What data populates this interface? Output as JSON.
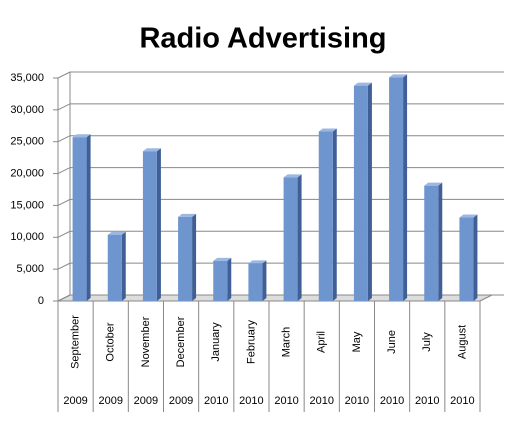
{
  "chart_data": {
    "type": "bar3d",
    "title": "Radio Advertising",
    "categories": [
      "September",
      "October",
      "November",
      "December",
      "January",
      "February",
      "March",
      "April",
      "May",
      "June",
      "July",
      "August"
    ],
    "category_groups": [
      "2009",
      "2009",
      "2009",
      "2009",
      "2010",
      "2010",
      "2010",
      "2010",
      "2010",
      "2010",
      "2010",
      "2010"
    ],
    "values": [
      25700,
      10400,
      23500,
      13200,
      6300,
      5900,
      19400,
      26600,
      33800,
      35100,
      18100,
      13100
    ],
    "color": "#6f95cf",
    "ylim": [
      0,
      35000
    ],
    "yticks": [
      0,
      {
        "value": 5000,
        "label": "5,000"
      },
      {
        "value": 10000,
        "label": "10,000"
      },
      {
        "value": 15000,
        "label": "15,000"
      },
      {
        "value": 20000,
        "label": "20,000"
      },
      {
        "value": 25000,
        "label": "25,000"
      },
      {
        "value": 30000,
        "label": "30,000"
      },
      {
        "value": 35000,
        "label": "35,000"
      }
    ],
    "grid": true
  }
}
